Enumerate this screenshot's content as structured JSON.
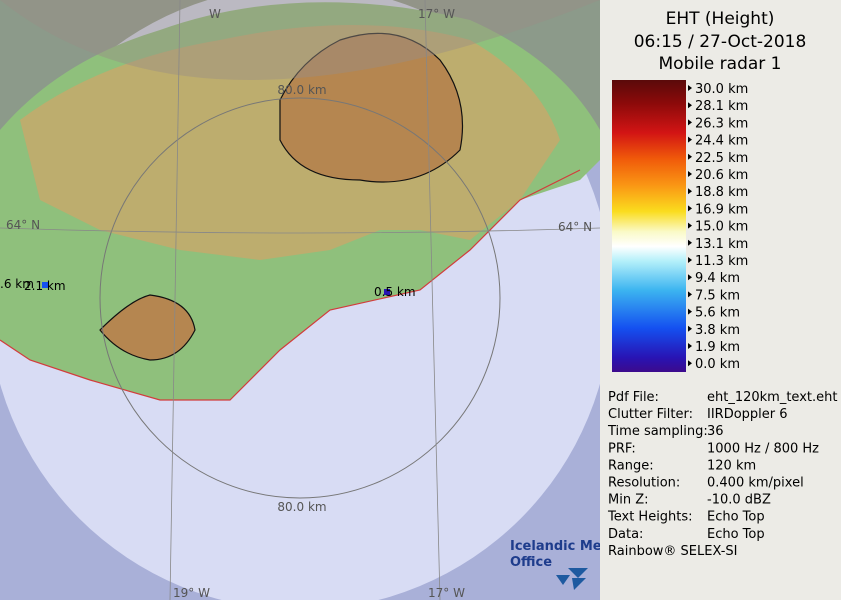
{
  "header": {
    "title": "EHT (Height)",
    "time": "06:15 / 27-Oct-2018",
    "radar": "Mobile radar 1"
  },
  "legend": {
    "labels": [
      "30.0 km",
      "28.1 km",
      "26.3 km",
      "24.4 km",
      "22.5 km",
      "20.6 km",
      "18.8 km",
      "16.9 km",
      "15.0 km",
      "13.1 km",
      "11.3 km",
      "9.4 km",
      "7.5 km",
      "5.6 km",
      "3.8 km",
      "1.9 km",
      "0.0 km"
    ]
  },
  "info": {
    "rows": [
      [
        "Pdf File:",
        "eht_120km_text.eht"
      ],
      [
        "Clutter Filter:",
        "IIRDoppler 6"
      ],
      [
        "Time sampling:",
        "36"
      ],
      [
        "PRF:",
        "1000 Hz / 800 Hz"
      ],
      [
        "Range:",
        "120 km"
      ],
      [
        "Resolution:",
        "0.400 km/pixel"
      ],
      [
        "Min Z:",
        "-10.0 dBZ"
      ],
      [
        "Text Heights:",
        "Echo Top"
      ],
      [
        "Data:",
        "Echo Top"
      ]
    ],
    "footer": "Rainbow® SELEX-SI"
  },
  "map": {
    "ring_top": "80.0 km",
    "ring_bottom": "80.0 km",
    "lat_left": "64° N",
    "lat_right": "64° N",
    "lon_bottom_left": "19° W",
    "lon_bottom_right": "17° W",
    "lon_top_left": "W",
    "lon_top_right": "17° W",
    "echo_1": "0.5 km",
    "echo_2": "2.1 km",
    "echo_3": ".6 km",
    "logo_1": "Icelandic Met",
    "logo_2": "Office"
  }
}
